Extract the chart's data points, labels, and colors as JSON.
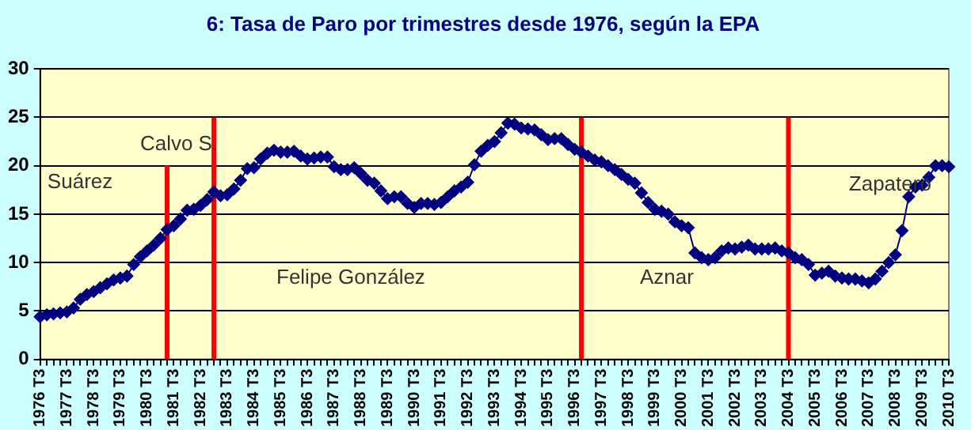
{
  "chart_data": {
    "type": "line",
    "title": "6: Tasa de Paro por trimestres desde 1976, según la EPA",
    "categories": [
      "1976 T3",
      null,
      null,
      null,
      "1977 T3",
      null,
      null,
      null,
      "1978 T3",
      null,
      null,
      null,
      "1979 T3",
      null,
      null,
      null,
      "1980 T3",
      null,
      null,
      null,
      "1981 T3",
      null,
      null,
      null,
      "1982 T3",
      null,
      null,
      null,
      "1983 T3",
      null,
      null,
      null,
      "1984 T3",
      null,
      null,
      null,
      "1985 T3",
      null,
      null,
      null,
      "1986 T3",
      null,
      null,
      null,
      "1987 T3",
      null,
      null,
      null,
      "1988 T3",
      null,
      null,
      null,
      "1989 T3",
      null,
      null,
      null,
      "1990 T3",
      null,
      null,
      null,
      "1991 T3",
      null,
      null,
      null,
      "1992 T3",
      null,
      null,
      null,
      "1993 T3",
      null,
      null,
      null,
      "1994 T3",
      null,
      null,
      null,
      "1995 T3",
      null,
      null,
      null,
      "1996 T3",
      null,
      null,
      null,
      "1997 T3",
      null,
      null,
      null,
      "1998 T3",
      null,
      null,
      null,
      "1999 T3",
      null,
      null,
      null,
      "2000 T3",
      null,
      null,
      null,
      "2001 T3",
      null,
      null,
      null,
      "2002 T3",
      null,
      null,
      null,
      "2003 T3",
      null,
      null,
      null,
      "2004 T3",
      null,
      null,
      null,
      "2005 T3",
      null,
      null,
      null,
      "2006 T3",
      null,
      null,
      null,
      "2007 T3",
      null,
      null,
      null,
      "2008 T3",
      null,
      null,
      null,
      "2009 T3",
      null,
      null,
      null,
      "2010 T3"
    ],
    "series": [
      {
        "color": "#000080",
        "values": [
          4.4,
          4.6,
          4.7,
          4.8,
          4.9,
          5.3,
          6.2,
          6.7,
          7.0,
          7.4,
          7.8,
          8.2,
          8.4,
          8.6,
          9.8,
          10.6,
          11.2,
          11.8,
          12.5,
          13.4,
          13.8,
          14.5,
          15.4,
          15.5,
          15.9,
          16.5,
          17.3,
          16.9,
          17.0,
          17.6,
          18.5,
          19.7,
          19.8,
          20.7,
          21.3,
          21.6,
          21.4,
          21.4,
          21.5,
          21.0,
          20.7,
          20.8,
          20.9,
          20.9,
          19.9,
          19.6,
          19.6,
          19.8,
          19.2,
          18.5,
          18.2,
          17.4,
          16.6,
          16.8,
          16.8,
          16.1,
          15.7,
          16.1,
          16.1,
          16.0,
          16.2,
          16.8,
          17.4,
          17.8,
          18.3,
          20.1,
          21.5,
          22.1,
          22.5,
          23.4,
          24.4,
          24.3,
          23.9,
          23.8,
          23.7,
          23.2,
          22.7,
          22.8,
          22.8,
          22.2,
          21.7,
          21.4,
          21.0,
          20.6,
          20.4,
          20.0,
          19.6,
          19.1,
          18.6,
          18.2,
          17.2,
          16.2,
          15.5,
          15.3,
          15.0,
          14.2,
          13.8,
          13.6,
          11.0,
          10.5,
          10.3,
          10.5,
          11.2,
          11.5,
          11.4,
          11.6,
          11.8,
          11.4,
          11.4,
          11.4,
          11.5,
          11.2,
          11.0,
          10.5,
          10.3,
          9.8,
          8.7,
          8.9,
          9.1,
          8.6,
          8.4,
          8.3,
          8.3,
          8.1,
          7.9,
          8.3,
          9.1,
          10.0,
          10.8,
          13.3,
          16.8,
          17.8,
          18.0,
          18.8,
          20.0,
          20.0,
          19.9
        ]
      }
    ],
    "annotations": [
      "Suárez",
      "Calvo S.",
      "Felipe González",
      "Aznar",
      "Zapatero"
    ],
    "ylim": [
      0,
      30
    ],
    "yticks": [
      0,
      5,
      10,
      15,
      20,
      25,
      30
    ],
    "grid": "y",
    "legend": false,
    "marker": "diamond",
    "line_style": "solid"
  }
}
